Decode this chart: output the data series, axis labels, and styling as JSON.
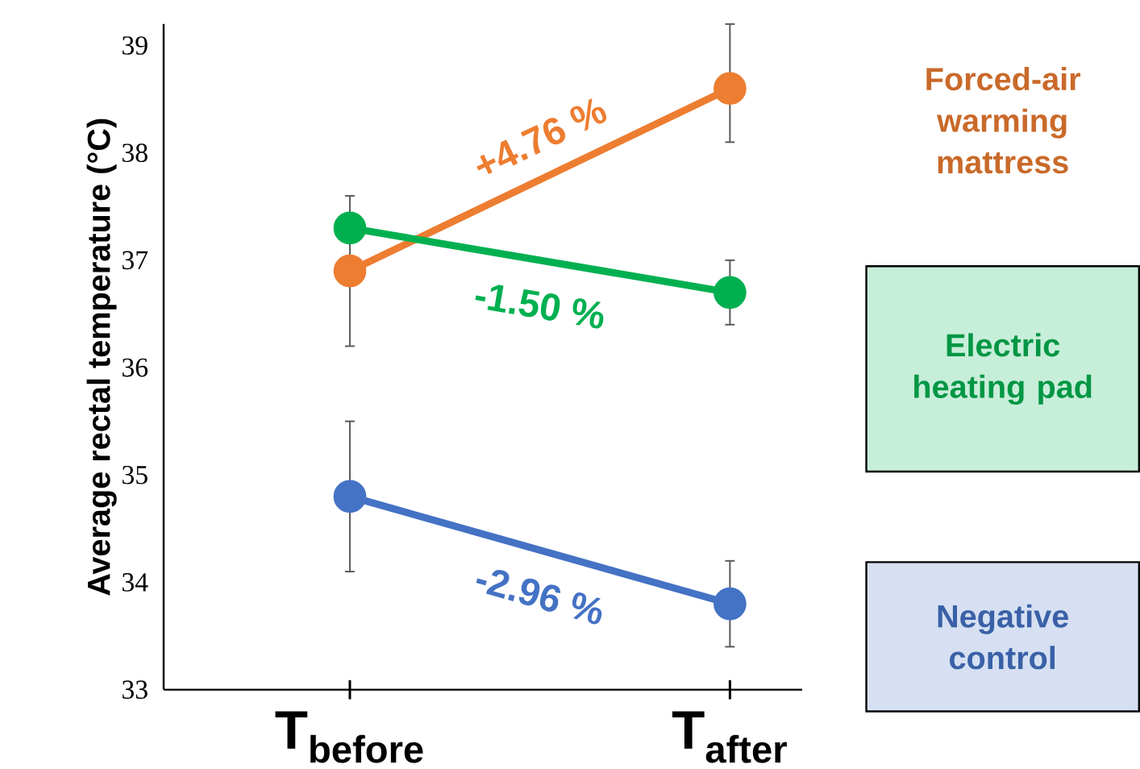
{
  "chart_data": {
    "type": "line",
    "ylabel": "Average rectal temperature (°C)",
    "categories": [
      "T$_{before}$",
      "T$_{after}$"
    ],
    "series": [
      {
        "name": "Forced-air warming mattress",
        "color": "#ed7d31",
        "values": [
          36.9,
          38.6
        ],
        "errors": [
          0.7,
          [
            38.1,
            39.2
          ]
        ]
      },
      {
        "name": "Electric heating pad",
        "color": "#00b050",
        "values": [
          37.3,
          36.7
        ],
        "errors": [
          null,
          0.3
        ]
      },
      {
        "name": "Negative control",
        "color": "#4472c4",
        "values": [
          34.8,
          33.8
        ],
        "errors": [
          0.7,
          [
            33.4,
            34.2
          ]
        ]
      }
    ],
    "annotations": [
      "+4.76 %",
      "-1.50 %",
      "-2.96 %"
    ],
    "ylim": [
      33,
      39.2
    ],
    "yticks": [
      33,
      34,
      35,
      36,
      37,
      38,
      39
    ],
    "grid": false,
    "legend": "right",
    "marker": "circle",
    "line_style": "solid"
  }
}
